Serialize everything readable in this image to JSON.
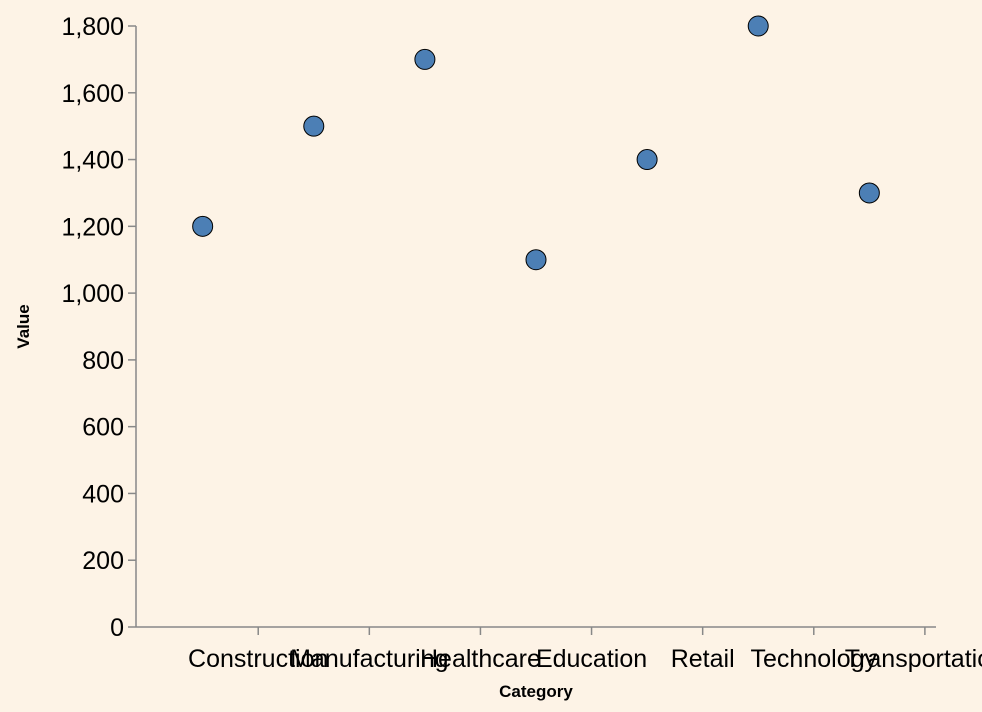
{
  "chart_data": {
    "type": "scatter",
    "categories": [
      "Construction",
      "Manufacturing",
      "Healthcare",
      "Education",
      "Retail",
      "Technology",
      "Transportation"
    ],
    "values": [
      1200,
      1500,
      1700,
      1100,
      1400,
      1800,
      1300
    ],
    "xlabel": "Category",
    "ylabel": "Value",
    "ylim": [
      0,
      1800
    ],
    "yticks": [
      0,
      200,
      400,
      600,
      800,
      1000,
      1200,
      1400,
      1600,
      1800
    ],
    "ytick_labels": [
      "0",
      "200",
      "400",
      "600",
      "800",
      "1,000",
      "1,200",
      "1,400",
      "1,600",
      "1,800"
    ],
    "grid": false,
    "colors": {
      "point": "#4c7fb5",
      "background": "#fdf3e6",
      "axis": "#888888"
    }
  }
}
